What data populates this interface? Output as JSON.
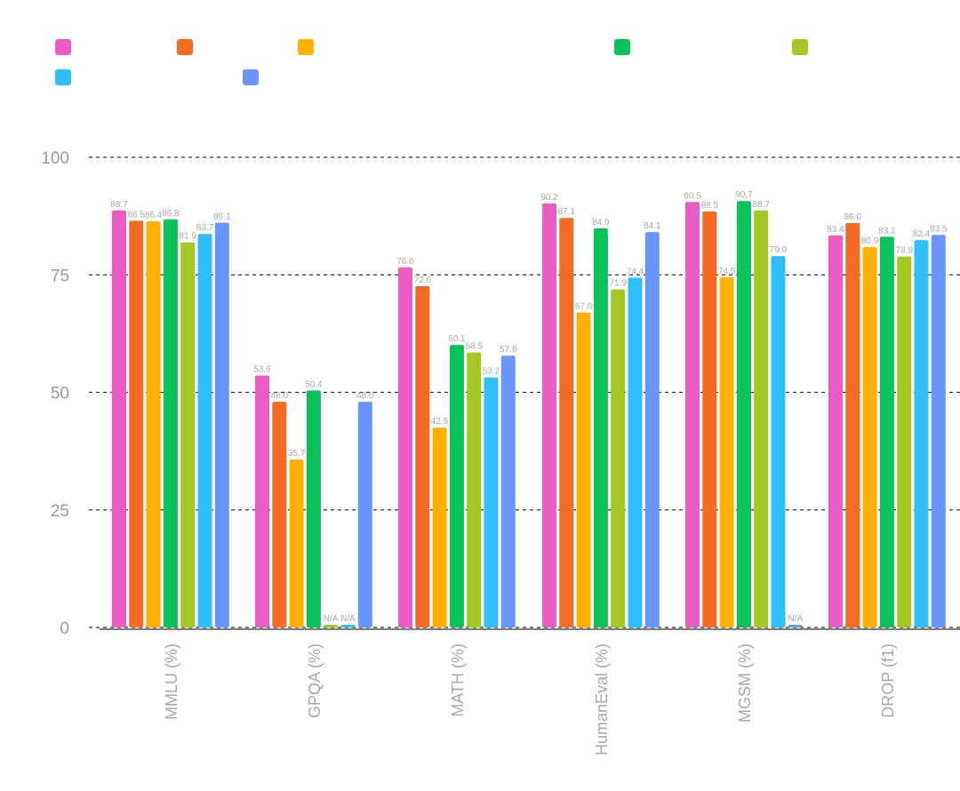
{
  "chart_data": {
    "type": "bar",
    "categories": [
      "MMLU (%)",
      "GPQA (%)",
      "MATH (%)",
      "HumanEval (%)",
      "MGSM (%)",
      "DROP (f1)"
    ],
    "ylim": [
      0,
      100
    ],
    "yticks": [
      "0",
      "25",
      "50",
      "75",
      "100"
    ],
    "grid": true,
    "legend_position": "top-left",
    "series": [
      {
        "color": "#e95bc5",
        "values": [
          88.7,
          53.6,
          76.6,
          90.2,
          90.5,
          83.4
        ],
        "labels": [
          "88.7",
          "53.6",
          "76.6",
          "90.2",
          "90.5",
          "83.4"
        ]
      },
      {
        "color": "#f26a24",
        "values": [
          86.5,
          48.0,
          72.6,
          87.1,
          88.5,
          86.0
        ],
        "labels": [
          "86.5",
          "48.0",
          "72.6",
          "87.1",
          "88.5",
          "86.0"
        ]
      },
      {
        "color": "#ffb000",
        "values": [
          86.4,
          35.7,
          42.5,
          67.0,
          74.5,
          80.9
        ],
        "labels": [
          "86.4",
          "35.7",
          "42.5",
          "67.0",
          "74.5",
          "80.9"
        ]
      },
      {
        "color": "#0ac15a",
        "values": [
          86.8,
          50.4,
          60.1,
          84.9,
          90.7,
          83.1
        ],
        "labels": [
          "86.8",
          "50.4",
          "60.1",
          "84.9",
          "90.7",
          "83.1"
        ]
      },
      {
        "color": "#a3c823",
        "values": [
          81.9,
          null,
          58.5,
          71.9,
          88.7,
          78.9
        ],
        "labels": [
          "81.9",
          "N/A",
          "58.5",
          "71.9",
          "88.7",
          "78.9"
        ]
      },
      {
        "color": "#2fc0fb",
        "values": [
          83.7,
          null,
          53.2,
          74.4,
          79.0,
          82.4
        ],
        "labels": [
          "83.7",
          "N/A",
          "53.2",
          "74.4",
          "79.0",
          "82.4"
        ]
      },
      {
        "color": "#6a96fb",
        "values": [
          86.1,
          48.0,
          57.8,
          84.1,
          null,
          83.5
        ],
        "labels": [
          "86.1",
          "48.0",
          "57.8",
          "84.1",
          "N/A",
          "83.5"
        ]
      }
    ]
  }
}
